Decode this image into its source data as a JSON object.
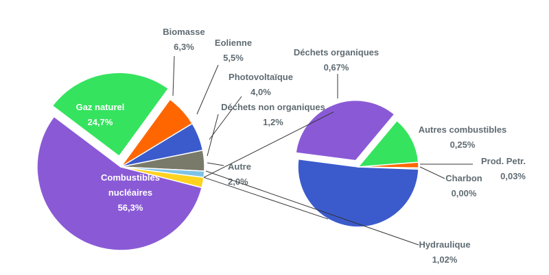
{
  "chart_data": {
    "type": "pie",
    "subtype": "pie-of-pie",
    "main_pie": {
      "slices": [
        {
          "label": "Combustibles nucléaires",
          "value_label": "56,3%",
          "value": 56.3,
          "color": "#8a5ad6"
        },
        {
          "label": "Gaz naturel",
          "value_label": "24,7%",
          "value": 24.7,
          "color": "#35e35f",
          "exploded": true
        },
        {
          "label": "Biomasse",
          "value_label": "6,3%",
          "value": 6.3,
          "color": "#ff6600"
        },
        {
          "label": "Eolienne",
          "value_label": "5,5%",
          "value": 5.5,
          "color": "#3b5bcc"
        },
        {
          "label": "Photovoltaïque",
          "value_label": "4,0%",
          "value": 4.0,
          "color": "#7a7a6a"
        },
        {
          "label": "Déchets non organiques",
          "value_label": "1,2%",
          "value": 1.2,
          "color": "#7ec3e6"
        },
        {
          "label": "Autre",
          "value_label": "2,0%",
          "value": 2.0,
          "color": "#ffd21f"
        }
      ]
    },
    "secondary_pie": {
      "slices": [
        {
          "label": "Hydraulique",
          "value_label": "1,02%",
          "value": 1.02,
          "color": "#3b5bcc"
        },
        {
          "label": "Déchets organiques",
          "value_label": "0,67%",
          "value": 0.67,
          "color": "#8a5ad6",
          "exploded": true
        },
        {
          "label": "Autres combustibles",
          "value_label": "0,25%",
          "value": 0.25,
          "color": "#35e35f"
        },
        {
          "label": "Prod. Petr.",
          "value_label": "0,03%",
          "value": 0.03,
          "color": "#ff6600"
        },
        {
          "label": "Charbon",
          "value_label": "0,00%",
          "value": 0.0,
          "color": "#7a7a6a"
        }
      ]
    }
  }
}
